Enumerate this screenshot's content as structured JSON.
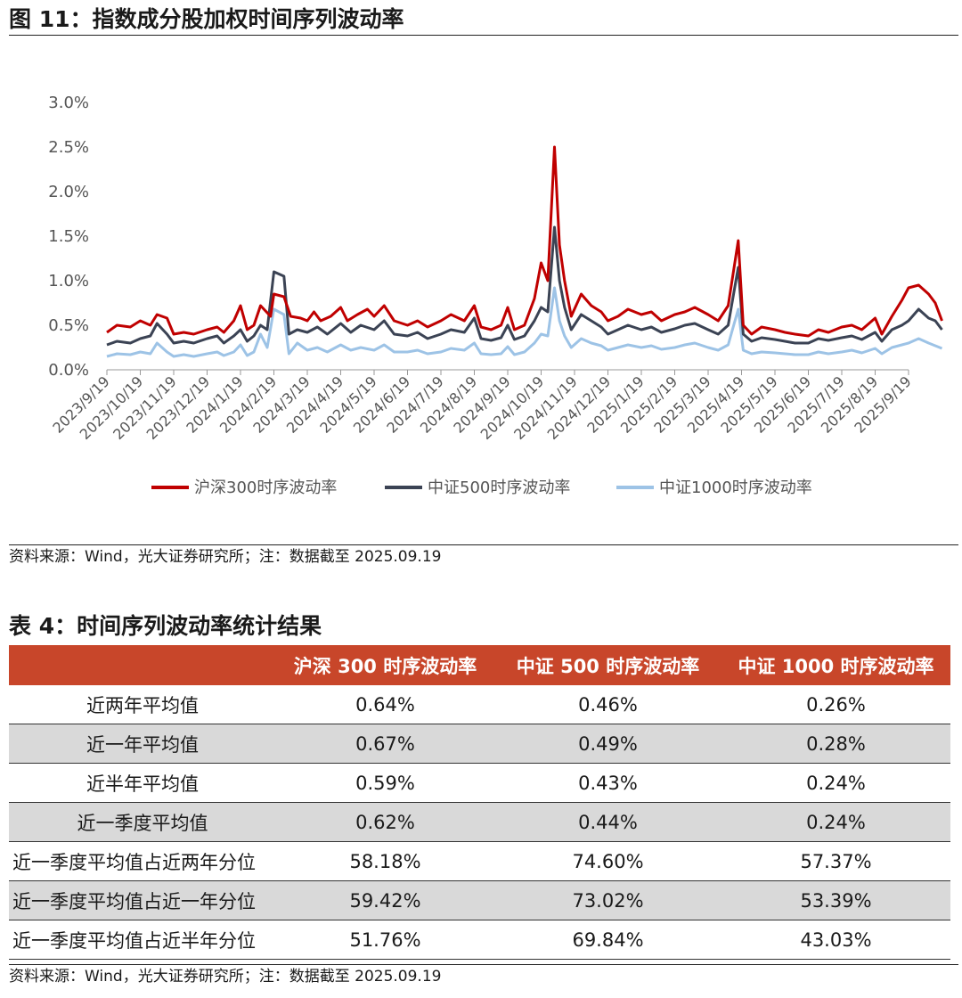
{
  "figure_title": "图 11：指数成分股加权时间序列波动率",
  "figure_source": "资料来源：Wind，光大证券研究所；注：数据截至 2025.09.19",
  "table_title": "表 4：时间序列波动率统计结果",
  "table_source": "资料来源：Wind，光大证券研究所；注：数据截至 2025.09.19",
  "colors": {
    "hs300": "#c00000",
    "zz500": "#3b4354",
    "zz1000": "#9dc3e6",
    "header_bg": "#c8462a",
    "shade": "#d9d9d9"
  },
  "table": {
    "headers": [
      "",
      "沪深 300 时序波动率",
      "中证 500 时序波动率",
      "中证 1000 时序波动率"
    ],
    "rows": [
      [
        "近两年平均值",
        "0.64%",
        "0.46%",
        "0.26%"
      ],
      [
        "近一年平均值",
        "0.67%",
        "0.49%",
        "0.28%"
      ],
      [
        "近半年平均值",
        "0.59%",
        "0.43%",
        "0.24%"
      ],
      [
        "近一季度平均值",
        "0.62%",
        "0.44%",
        "0.24%"
      ],
      [
        "近一季度平均值占近两年分位",
        "58.18%",
        "74.60%",
        "57.37%"
      ],
      [
        "近一季度平均值占近一年分位",
        "59.42%",
        "73.02%",
        "53.39%"
      ],
      [
        "近一季度平均值占近半年分位",
        "51.76%",
        "69.84%",
        "43.03%"
      ]
    ]
  },
  "chart_data": {
    "type": "line",
    "title": "",
    "xlabel": "",
    "ylabel": "",
    "ylim": [
      0,
      3.0
    ],
    "yticks": [
      "0.0%",
      "0.5%",
      "1.0%",
      "1.5%",
      "2.0%",
      "2.5%",
      "3.0%"
    ],
    "categories": [
      "2023/9/19",
      "2023/10/19",
      "2023/11/19",
      "2023/12/19",
      "2024/1/19",
      "2024/2/19",
      "2024/3/19",
      "2024/4/19",
      "2024/5/19",
      "2024/6/19",
      "2024/7/19",
      "2024/8/19",
      "2024/9/19",
      "2024/10/19",
      "2024/11/19",
      "2024/12/19",
      "2025/1/19",
      "2025/2/19",
      "2025/3/19",
      "2025/4/19",
      "2025/5/19",
      "2025/6/19",
      "2025/7/19",
      "2025/8/19",
      "2025/9/19"
    ],
    "legend_position": "bottom",
    "series": [
      {
        "name": "沪深300时序波动率",
        "color": "#c00000",
        "points": [
          [
            0,
            0.42
          ],
          [
            0.3,
            0.5
          ],
          [
            0.7,
            0.48
          ],
          [
            1.0,
            0.55
          ],
          [
            1.3,
            0.5
          ],
          [
            1.5,
            0.62
          ],
          [
            1.8,
            0.58
          ],
          [
            2.0,
            0.4
          ],
          [
            2.3,
            0.42
          ],
          [
            2.6,
            0.4
          ],
          [
            3.0,
            0.45
          ],
          [
            3.3,
            0.48
          ],
          [
            3.5,
            0.42
          ],
          [
            3.8,
            0.55
          ],
          [
            4.0,
            0.72
          ],
          [
            4.2,
            0.45
          ],
          [
            4.4,
            0.5
          ],
          [
            4.6,
            0.72
          ],
          [
            4.9,
            0.6
          ],
          [
            5.0,
            0.85
          ],
          [
            5.3,
            0.82
          ],
          [
            5.5,
            0.6
          ],
          [
            5.8,
            0.58
          ],
          [
            6.0,
            0.55
          ],
          [
            6.2,
            0.65
          ],
          [
            6.4,
            0.55
          ],
          [
            6.7,
            0.6
          ],
          [
            7.0,
            0.7
          ],
          [
            7.2,
            0.55
          ],
          [
            7.5,
            0.62
          ],
          [
            7.8,
            0.68
          ],
          [
            8.0,
            0.6
          ],
          [
            8.3,
            0.72
          ],
          [
            8.6,
            0.55
          ],
          [
            9.0,
            0.5
          ],
          [
            9.3,
            0.55
          ],
          [
            9.6,
            0.48
          ],
          [
            10.0,
            0.55
          ],
          [
            10.3,
            0.62
          ],
          [
            10.7,
            0.55
          ],
          [
            11.0,
            0.72
          ],
          [
            11.2,
            0.48
          ],
          [
            11.5,
            0.45
          ],
          [
            11.8,
            0.5
          ],
          [
            12.0,
            0.7
          ],
          [
            12.2,
            0.45
          ],
          [
            12.5,
            0.5
          ],
          [
            12.8,
            0.8
          ],
          [
            13.0,
            1.2
          ],
          [
            13.2,
            1.0
          ],
          [
            13.4,
            2.5
          ],
          [
            13.55,
            1.4
          ],
          [
            13.7,
            1.0
          ],
          [
            13.9,
            0.6
          ],
          [
            14.2,
            0.85
          ],
          [
            14.5,
            0.72
          ],
          [
            14.8,
            0.65
          ],
          [
            15.0,
            0.55
          ],
          [
            15.3,
            0.6
          ],
          [
            15.6,
            0.68
          ],
          [
            16.0,
            0.62
          ],
          [
            16.3,
            0.65
          ],
          [
            16.6,
            0.55
          ],
          [
            17.0,
            0.62
          ],
          [
            17.3,
            0.65
          ],
          [
            17.6,
            0.7
          ],
          [
            18.0,
            0.62
          ],
          [
            18.3,
            0.55
          ],
          [
            18.6,
            0.72
          ],
          [
            18.9,
            1.45
          ],
          [
            19.05,
            0.5
          ],
          [
            19.3,
            0.4
          ],
          [
            19.6,
            0.48
          ],
          [
            20.0,
            0.45
          ],
          [
            20.3,
            0.42
          ],
          [
            20.6,
            0.4
          ],
          [
            21.0,
            0.38
          ],
          [
            21.3,
            0.45
          ],
          [
            21.6,
            0.42
          ],
          [
            22.0,
            0.48
          ],
          [
            22.3,
            0.5
          ],
          [
            22.6,
            0.45
          ],
          [
            23.0,
            0.58
          ],
          [
            23.2,
            0.4
          ],
          [
            23.5,
            0.6
          ],
          [
            23.8,
            0.78
          ],
          [
            24.0,
            0.92
          ],
          [
            24.3,
            0.95
          ],
          [
            24.6,
            0.85
          ],
          [
            24.8,
            0.75
          ],
          [
            25.0,
            0.55
          ]
        ]
      },
      {
        "name": "中证500时序波动率",
        "color": "#3b4354",
        "points": [
          [
            0,
            0.28
          ],
          [
            0.3,
            0.32
          ],
          [
            0.7,
            0.3
          ],
          [
            1.0,
            0.35
          ],
          [
            1.3,
            0.38
          ],
          [
            1.5,
            0.52
          ],
          [
            1.8,
            0.4
          ],
          [
            2.0,
            0.3
          ],
          [
            2.3,
            0.32
          ],
          [
            2.6,
            0.3
          ],
          [
            3.0,
            0.35
          ],
          [
            3.3,
            0.38
          ],
          [
            3.5,
            0.3
          ],
          [
            3.8,
            0.38
          ],
          [
            4.0,
            0.45
          ],
          [
            4.2,
            0.32
          ],
          [
            4.4,
            0.38
          ],
          [
            4.6,
            0.5
          ],
          [
            4.8,
            0.45
          ],
          [
            5.0,
            1.1
          ],
          [
            5.3,
            1.05
          ],
          [
            5.45,
            0.4
          ],
          [
            5.7,
            0.45
          ],
          [
            6.0,
            0.42
          ],
          [
            6.3,
            0.48
          ],
          [
            6.6,
            0.4
          ],
          [
            7.0,
            0.52
          ],
          [
            7.3,
            0.42
          ],
          [
            7.6,
            0.5
          ],
          [
            8.0,
            0.45
          ],
          [
            8.3,
            0.55
          ],
          [
            8.6,
            0.4
          ],
          [
            9.0,
            0.38
          ],
          [
            9.3,
            0.42
          ],
          [
            9.6,
            0.35
          ],
          [
            10.0,
            0.4
          ],
          [
            10.3,
            0.45
          ],
          [
            10.7,
            0.42
          ],
          [
            11.0,
            0.58
          ],
          [
            11.2,
            0.35
          ],
          [
            11.5,
            0.33
          ],
          [
            11.8,
            0.36
          ],
          [
            12.0,
            0.5
          ],
          [
            12.2,
            0.34
          ],
          [
            12.5,
            0.38
          ],
          [
            12.8,
            0.55
          ],
          [
            13.0,
            0.7
          ],
          [
            13.2,
            0.65
          ],
          [
            13.4,
            1.6
          ],
          [
            13.55,
            1.0
          ],
          [
            13.7,
            0.7
          ],
          [
            13.9,
            0.45
          ],
          [
            14.2,
            0.62
          ],
          [
            14.5,
            0.55
          ],
          [
            14.8,
            0.48
          ],
          [
            15.0,
            0.4
          ],
          [
            15.3,
            0.45
          ],
          [
            15.6,
            0.5
          ],
          [
            16.0,
            0.45
          ],
          [
            16.3,
            0.48
          ],
          [
            16.6,
            0.42
          ],
          [
            17.0,
            0.46
          ],
          [
            17.3,
            0.5
          ],
          [
            17.6,
            0.52
          ],
          [
            18.0,
            0.45
          ],
          [
            18.3,
            0.4
          ],
          [
            18.6,
            0.5
          ],
          [
            18.9,
            1.15
          ],
          [
            19.05,
            0.4
          ],
          [
            19.3,
            0.32
          ],
          [
            19.6,
            0.36
          ],
          [
            20.0,
            0.34
          ],
          [
            20.3,
            0.32
          ],
          [
            20.6,
            0.3
          ],
          [
            21.0,
            0.3
          ],
          [
            21.3,
            0.35
          ],
          [
            21.6,
            0.33
          ],
          [
            22.0,
            0.36
          ],
          [
            22.3,
            0.38
          ],
          [
            22.6,
            0.34
          ],
          [
            23.0,
            0.42
          ],
          [
            23.2,
            0.32
          ],
          [
            23.5,
            0.45
          ],
          [
            23.8,
            0.5
          ],
          [
            24.0,
            0.55
          ],
          [
            24.3,
            0.68
          ],
          [
            24.6,
            0.58
          ],
          [
            24.8,
            0.55
          ],
          [
            25.0,
            0.45
          ]
        ]
      },
      {
        "name": "中证1000时序波动率",
        "color": "#9dc3e6",
        "points": [
          [
            0,
            0.15
          ],
          [
            0.3,
            0.18
          ],
          [
            0.7,
            0.17
          ],
          [
            1.0,
            0.2
          ],
          [
            1.3,
            0.18
          ],
          [
            1.5,
            0.3
          ],
          [
            1.8,
            0.2
          ],
          [
            2.0,
            0.15
          ],
          [
            2.3,
            0.17
          ],
          [
            2.6,
            0.15
          ],
          [
            3.0,
            0.18
          ],
          [
            3.3,
            0.2
          ],
          [
            3.5,
            0.16
          ],
          [
            3.8,
            0.2
          ],
          [
            4.0,
            0.28
          ],
          [
            4.2,
            0.16
          ],
          [
            4.4,
            0.2
          ],
          [
            4.6,
            0.4
          ],
          [
            4.8,
            0.25
          ],
          [
            5.0,
            0.68
          ],
          [
            5.3,
            0.62
          ],
          [
            5.45,
            0.18
          ],
          [
            5.7,
            0.3
          ],
          [
            6.0,
            0.22
          ],
          [
            6.3,
            0.25
          ],
          [
            6.6,
            0.2
          ],
          [
            7.0,
            0.28
          ],
          [
            7.3,
            0.22
          ],
          [
            7.6,
            0.25
          ],
          [
            8.0,
            0.22
          ],
          [
            8.3,
            0.28
          ],
          [
            8.6,
            0.2
          ],
          [
            9.0,
            0.2
          ],
          [
            9.3,
            0.22
          ],
          [
            9.6,
            0.18
          ],
          [
            10.0,
            0.2
          ],
          [
            10.3,
            0.24
          ],
          [
            10.7,
            0.22
          ],
          [
            11.0,
            0.3
          ],
          [
            11.2,
            0.18
          ],
          [
            11.5,
            0.17
          ],
          [
            11.8,
            0.18
          ],
          [
            12.0,
            0.26
          ],
          [
            12.2,
            0.17
          ],
          [
            12.5,
            0.2
          ],
          [
            12.8,
            0.3
          ],
          [
            13.0,
            0.4
          ],
          [
            13.2,
            0.38
          ],
          [
            13.4,
            0.92
          ],
          [
            13.55,
            0.55
          ],
          [
            13.7,
            0.38
          ],
          [
            13.9,
            0.25
          ],
          [
            14.2,
            0.35
          ],
          [
            14.5,
            0.3
          ],
          [
            14.8,
            0.27
          ],
          [
            15.0,
            0.22
          ],
          [
            15.3,
            0.25
          ],
          [
            15.6,
            0.28
          ],
          [
            16.0,
            0.25
          ],
          [
            16.3,
            0.27
          ],
          [
            16.6,
            0.23
          ],
          [
            17.0,
            0.25
          ],
          [
            17.3,
            0.28
          ],
          [
            17.6,
            0.3
          ],
          [
            18.0,
            0.25
          ],
          [
            18.3,
            0.22
          ],
          [
            18.6,
            0.28
          ],
          [
            18.9,
            0.68
          ],
          [
            19.05,
            0.22
          ],
          [
            19.3,
            0.18
          ],
          [
            19.6,
            0.2
          ],
          [
            20.0,
            0.19
          ],
          [
            20.3,
            0.18
          ],
          [
            20.6,
            0.17
          ],
          [
            21.0,
            0.17
          ],
          [
            21.3,
            0.2
          ],
          [
            21.6,
            0.18
          ],
          [
            22.0,
            0.2
          ],
          [
            22.3,
            0.22
          ],
          [
            22.6,
            0.19
          ],
          [
            23.0,
            0.24
          ],
          [
            23.2,
            0.18
          ],
          [
            23.5,
            0.25
          ],
          [
            23.8,
            0.28
          ],
          [
            24.0,
            0.3
          ],
          [
            24.3,
            0.35
          ],
          [
            24.6,
            0.3
          ],
          [
            24.8,
            0.27
          ],
          [
            25.0,
            0.24
          ]
        ]
      }
    ]
  }
}
